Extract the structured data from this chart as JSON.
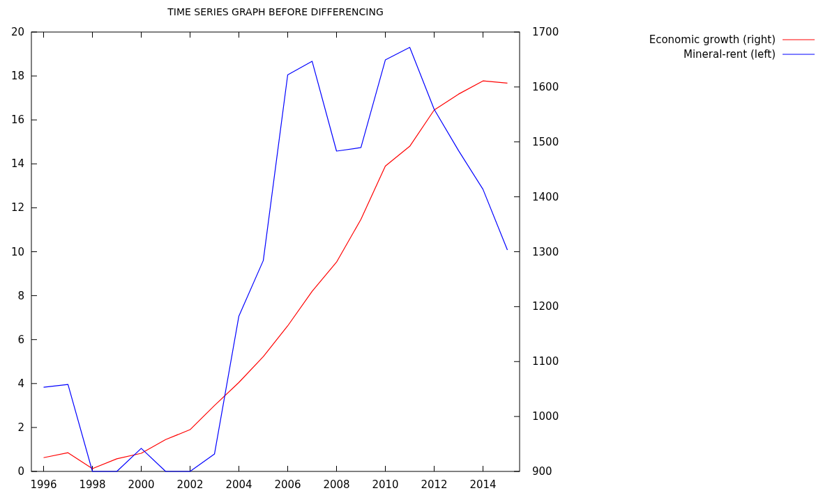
{
  "chart_data": {
    "type": "line",
    "title": "TIME SERIES GRAPH BEFORE DIFFERENCING",
    "x": [
      1996,
      1997,
      1998,
      1999,
      2000,
      2001,
      2002,
      2003,
      2004,
      2005,
      2006,
      2007,
      2008,
      2009,
      2010,
      2011,
      2012,
      2013,
      2014,
      2015
    ],
    "series": [
      {
        "name": "Economic growth (right)",
        "color": "#ff0000",
        "axis": "y2",
        "values": [
          925,
          934,
          905,
          923,
          933,
          958,
          976,
          1020,
          1062,
          1109,
          1165,
          1228,
          1281,
          1359,
          1456,
          1492,
          1558,
          1587,
          1611,
          1607
        ]
      },
      {
        "name": "Mineral-rent (left)",
        "color": "#0000ff",
        "values": [
          3.83,
          3.96,
          0,
          0,
          1.05,
          0,
          0,
          0.79,
          7.07,
          9.6,
          18.05,
          18.67,
          14.58,
          14.74,
          18.73,
          19.3,
          16.48,
          14.6,
          12.84,
          10.08
        ]
      }
    ],
    "xlim": [
      1995.5,
      2015.5
    ],
    "xticks": [
      1996,
      1998,
      2000,
      2002,
      2004,
      2006,
      2008,
      2010,
      2012,
      2014
    ],
    "ylim": [
      0,
      20
    ],
    "yticks": [
      0,
      2,
      4,
      6,
      8,
      10,
      12,
      14,
      16,
      18,
      20
    ],
    "y2lim": [
      900,
      1700
    ],
    "y2ticks": [
      900,
      1000,
      1100,
      1200,
      1300,
      1400,
      1500,
      1600,
      1700
    ],
    "legend": "top right",
    "grid": false
  }
}
